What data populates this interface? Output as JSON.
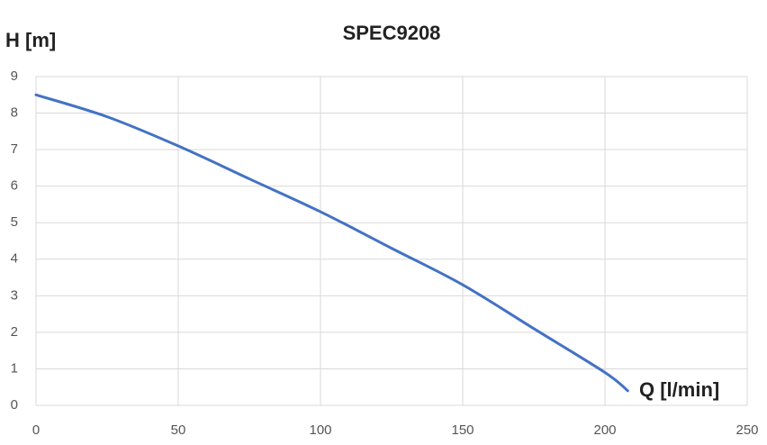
{
  "chart_data": {
    "type": "line",
    "title": "SPEC9208",
    "y_label": "H [m]",
    "x_label": "Q [l/min]",
    "x": [
      0,
      25,
      50,
      75,
      100,
      125,
      150,
      175,
      200,
      208
    ],
    "series": [
      {
        "name": "SPEC9208",
        "color": "#4472c4",
        "values": [
          8.5,
          7.9,
          7.1,
          6.2,
          5.3,
          4.3,
          3.3,
          2.1,
          0.9,
          0.4
        ]
      }
    ],
    "xlim": [
      0,
      250
    ],
    "xticks": [
      0,
      50,
      100,
      150,
      200,
      250
    ],
    "ylim": [
      0,
      9
    ],
    "yticks": [
      0,
      1,
      2,
      3,
      4,
      5,
      6,
      7,
      8,
      9
    ],
    "grid": true
  }
}
